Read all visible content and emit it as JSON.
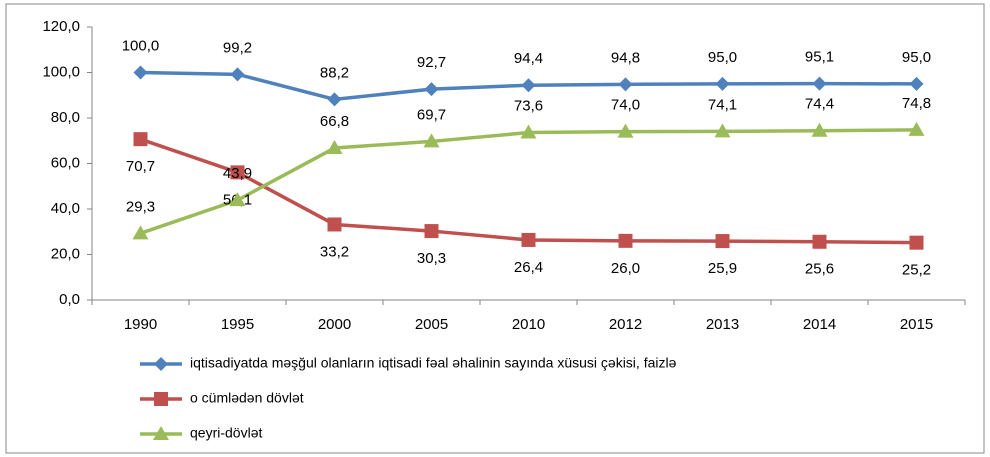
{
  "chart_data": {
    "type": "line",
    "categories": [
      "1990",
      "1995",
      "2000",
      "2005",
      "2010",
      "2012",
      "2013",
      "2014",
      "2015"
    ],
    "series": [
      {
        "name": "iqtisadiyatda məşğul olanların iqtisadi fəal əhalinin sayında xüsusi çəkisi, faizlə",
        "color": "#4f81bd",
        "marker": "diamond",
        "values": [
          100.0,
          99.2,
          88.2,
          92.7,
          94.4,
          94.8,
          95.0,
          95.1,
          95.0
        ],
        "value_labels": [
          "100,0",
          "99,2",
          "88,2",
          "92,7",
          "94,4",
          "94,8",
          "95,0",
          "95,1",
          "95,0"
        ]
      },
      {
        "name": "o cümlədən dövlət",
        "color": "#c0504d",
        "marker": "square",
        "values": [
          70.7,
          56.1,
          33.2,
          30.3,
          26.4,
          26.0,
          25.9,
          25.6,
          25.2
        ],
        "value_labels": [
          "70,7",
          "56,1",
          "33,2",
          "30,3",
          "26,4",
          "26,0",
          "25,9",
          "25,6",
          "25,2"
        ]
      },
      {
        "name": "qeyri-dövlət",
        "color": "#9bbb59",
        "marker": "triangle",
        "values": [
          29.3,
          43.9,
          66.8,
          69.7,
          73.6,
          74.0,
          74.1,
          74.4,
          74.8
        ],
        "value_labels": [
          "29,3",
          "43,9",
          "66,8",
          "69,7",
          "73,6",
          "74,0",
          "74,1",
          "74,4",
          "74,8"
        ]
      }
    ],
    "ylim": [
      0,
      120
    ],
    "yticks": [
      {
        "value": 0,
        "label": "0,0"
      },
      {
        "value": 20,
        "label": "20,0"
      },
      {
        "value": 40,
        "label": "40,0"
      },
      {
        "value": 60,
        "label": "60,0"
      },
      {
        "value": 80,
        "label": "80,0"
      },
      {
        "value": 100,
        "label": "100,0"
      },
      {
        "value": 120,
        "label": "120,0"
      }
    ],
    "legend": "bottom"
  }
}
